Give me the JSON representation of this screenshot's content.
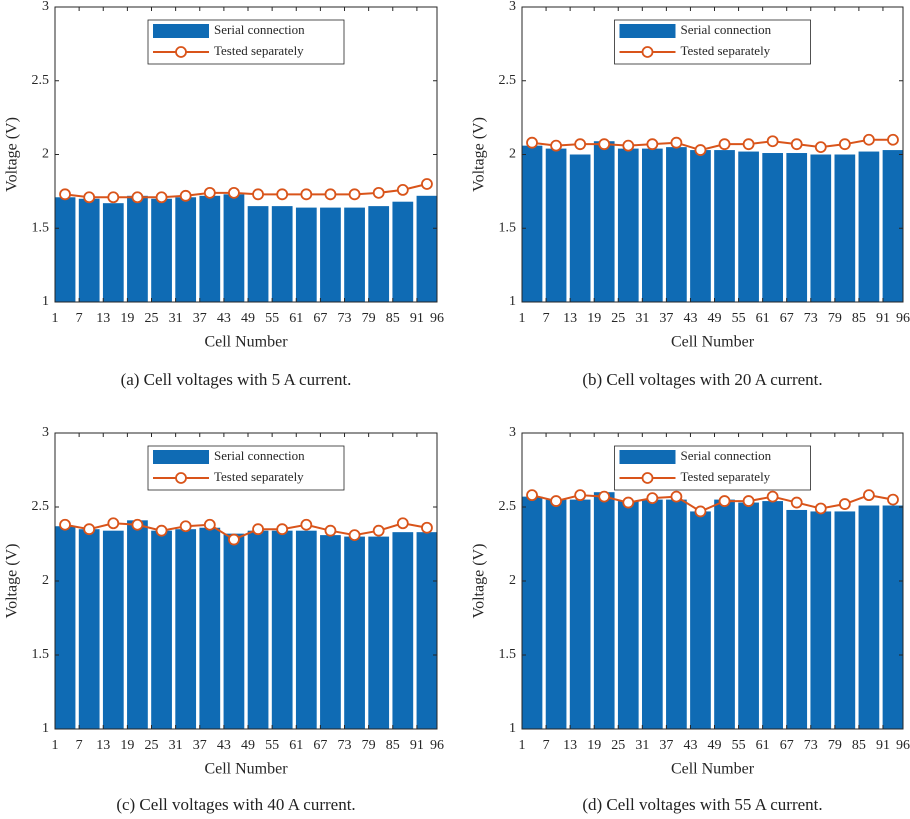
{
  "chart_data": [
    {
      "type": "combo",
      "caption": "(a) Cell voltages with 5 A current.",
      "xlabel": "Cell Number",
      "ylabel": "Voltage (V)",
      "x": [
        3.5,
        9.5,
        15.5,
        21.5,
        27.5,
        33.5,
        39.5,
        45.5,
        51.5,
        57.5,
        63.5,
        69.5,
        75.5,
        81.5,
        87.5,
        93.5
      ],
      "series": [
        {
          "name": "Serial connection",
          "type": "bar",
          "color": "#0f6bb4",
          "values": [
            1.71,
            1.7,
            1.67,
            1.72,
            1.7,
            1.71,
            1.72,
            1.73,
            1.65,
            1.65,
            1.64,
            1.64,
            1.64,
            1.65,
            1.68,
            1.72
          ]
        },
        {
          "name": "Tested separately",
          "type": "line",
          "color": "#d9541a",
          "values": [
            1.73,
            1.71,
            1.71,
            1.71,
            1.71,
            1.72,
            1.74,
            1.74,
            1.73,
            1.73,
            1.73,
            1.73,
            1.73,
            1.74,
            1.76,
            1.8
          ]
        }
      ],
      "xlim": [
        1,
        96
      ],
      "xticks": [
        1,
        7,
        13,
        19,
        25,
        31,
        37,
        43,
        49,
        55,
        61,
        67,
        73,
        79,
        85,
        91,
        96
      ],
      "ylim": [
        1,
        3
      ],
      "yticks": [
        1,
        1.5,
        2,
        2.5,
        3
      ],
      "legend": "north"
    },
    {
      "type": "combo",
      "caption": "(b) Cell voltages with 20 A current.",
      "xlabel": "Cell Number",
      "ylabel": "Voltage (V)",
      "x": [
        3.5,
        9.5,
        15.5,
        21.5,
        27.5,
        33.5,
        39.5,
        45.5,
        51.5,
        57.5,
        63.5,
        69.5,
        75.5,
        81.5,
        87.5,
        93.5
      ],
      "series": [
        {
          "name": "Serial connection",
          "type": "bar",
          "color": "#0f6bb4",
          "values": [
            2.06,
            2.04,
            2.0,
            2.09,
            2.04,
            2.04,
            2.05,
            2.03,
            2.03,
            2.02,
            2.01,
            2.01,
            2.0,
            2.0,
            2.02,
            2.03
          ]
        },
        {
          "name": "Tested separately",
          "type": "line",
          "color": "#d9541a",
          "values": [
            2.08,
            2.06,
            2.07,
            2.07,
            2.06,
            2.07,
            2.08,
            2.03,
            2.07,
            2.07,
            2.09,
            2.07,
            2.05,
            2.07,
            2.1,
            2.1
          ]
        }
      ],
      "xlim": [
        1,
        96
      ],
      "xticks": [
        1,
        7,
        13,
        19,
        25,
        31,
        37,
        43,
        49,
        55,
        61,
        67,
        73,
        79,
        85,
        91,
        96
      ],
      "ylim": [
        1,
        3
      ],
      "yticks": [
        1,
        1.5,
        2,
        2.5,
        3
      ],
      "legend": "north"
    },
    {
      "type": "combo",
      "caption": "(c) Cell voltages with 40 A current.",
      "xlabel": "Cell Number",
      "ylabel": "Voltage (V)",
      "x": [
        3.5,
        9.5,
        15.5,
        21.5,
        27.5,
        33.5,
        39.5,
        45.5,
        51.5,
        57.5,
        63.5,
        69.5,
        75.5,
        81.5,
        87.5,
        93.5
      ],
      "series": [
        {
          "name": "Serial connection",
          "type": "bar",
          "color": "#0f6bb4",
          "values": [
            2.37,
            2.35,
            2.34,
            2.41,
            2.34,
            2.35,
            2.36,
            2.32,
            2.34,
            2.34,
            2.34,
            2.31,
            2.3,
            2.3,
            2.33,
            2.33
          ]
        },
        {
          "name": "Tested separately",
          "type": "line",
          "color": "#d9541a",
          "values": [
            2.38,
            2.35,
            2.39,
            2.38,
            2.34,
            2.37,
            2.38,
            2.28,
            2.35,
            2.35,
            2.38,
            2.34,
            2.31,
            2.34,
            2.39,
            2.36
          ]
        }
      ],
      "xlim": [
        1,
        96
      ],
      "xticks": [
        1,
        7,
        13,
        19,
        25,
        31,
        37,
        43,
        49,
        55,
        61,
        67,
        73,
        79,
        85,
        91,
        96
      ],
      "ylim": [
        1,
        3
      ],
      "yticks": [
        1,
        1.5,
        2,
        2.5,
        3
      ],
      "legend": "north"
    },
    {
      "type": "combo",
      "caption": "(d) Cell voltages with 55 A current.",
      "xlabel": "Cell Number",
      "ylabel": "Voltage (V)",
      "x": [
        3.5,
        9.5,
        15.5,
        21.5,
        27.5,
        33.5,
        39.5,
        45.5,
        51.5,
        57.5,
        63.5,
        69.5,
        75.5,
        81.5,
        87.5,
        93.5
      ],
      "series": [
        {
          "name": "Serial connection",
          "type": "bar",
          "color": "#0f6bb4",
          "values": [
            2.57,
            2.55,
            2.55,
            2.6,
            2.54,
            2.55,
            2.55,
            2.47,
            2.55,
            2.53,
            2.54,
            2.48,
            2.47,
            2.47,
            2.51,
            2.51
          ]
        },
        {
          "name": "Tested separately",
          "type": "line",
          "color": "#d9541a",
          "values": [
            2.58,
            2.54,
            2.58,
            2.57,
            2.53,
            2.56,
            2.57,
            2.47,
            2.54,
            2.54,
            2.57,
            2.53,
            2.49,
            2.52,
            2.58,
            2.55
          ]
        }
      ],
      "xlim": [
        1,
        96
      ],
      "xticks": [
        1,
        7,
        13,
        19,
        25,
        31,
        37,
        43,
        49,
        55,
        61,
        67,
        73,
        79,
        85,
        91,
        96
      ],
      "ylim": [
        1,
        3
      ],
      "yticks": [
        1,
        1.5,
        2,
        2.5,
        3
      ],
      "legend": "north"
    }
  ]
}
